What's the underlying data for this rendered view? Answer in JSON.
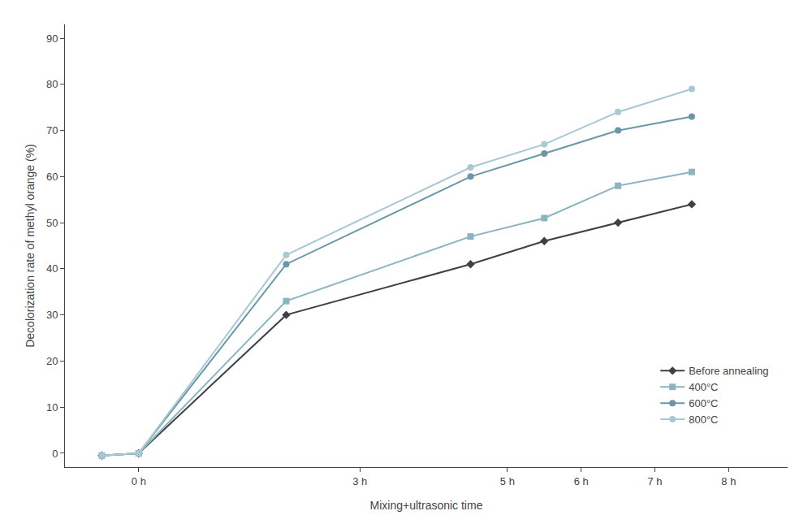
{
  "chart_data": {
    "type": "line",
    "x": [
      -0.5,
      0,
      2,
      4.5,
      5.5,
      6.5,
      7.5
    ],
    "series": [
      {
        "name": "Before annealing",
        "color": "#404040",
        "marker": "diamond",
        "values": [
          -0.5,
          0,
          30,
          41,
          46,
          50,
          54
        ]
      },
      {
        "name": "400°C",
        "color": "#8ab4c0",
        "marker": "square",
        "values": [
          -0.5,
          0,
          33,
          47,
          51,
          58,
          61
        ]
      },
      {
        "name": "600°C",
        "color": "#6897a8",
        "marker": "circle",
        "values": [
          -0.5,
          0,
          41,
          60,
          65,
          70,
          73
        ]
      },
      {
        "name": "800°C",
        "color": "#a8c8d4",
        "marker": "circle",
        "values": [
          -0.5,
          0,
          43,
          62,
          67,
          74,
          79
        ]
      }
    ],
    "x_label": "Mixing+ultrasonic time",
    "y_label": "Decolorization rate of methyl orange (%)",
    "xlim": [
      -1.0,
      8.8
    ],
    "xticks": [
      {
        "value": 0,
        "label": "0 h"
      },
      {
        "value": 3,
        "label": "3 h"
      },
      {
        "value": 5,
        "label": "5 h"
      },
      {
        "value": 6,
        "label": "6 h"
      },
      {
        "value": 7,
        "label": "7 h"
      },
      {
        "value": 8,
        "label": "8 h"
      }
    ],
    "ylim": [
      -3,
      93
    ],
    "yticks": [
      0,
      10,
      20,
      30,
      40,
      50,
      60,
      70,
      80,
      90
    ],
    "grid": false,
    "legend": "lower right"
  }
}
